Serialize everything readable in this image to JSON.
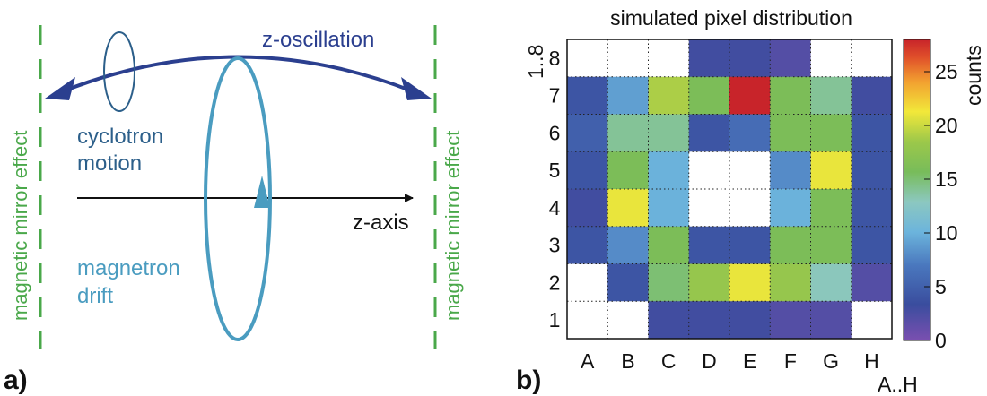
{
  "panel_a": {
    "label": "a)",
    "left_mirror_label": "magnetic mirror effect",
    "right_mirror_label": "magnetic mirror effect",
    "z_oscillation_label": "z-oscillation",
    "cyclotron_line1": "cyclotron",
    "cyclotron_line2": "motion",
    "magnetron_line1": "magnetron",
    "magnetron_line2": "drift",
    "z_axis_label": "z-axis",
    "colors": {
      "mirror": "#4aa84a",
      "cyclotron": "#2c5f8a",
      "magnetron": "#4a9cc0",
      "z_oscillation": "#2b3f8f",
      "axis": "#111111"
    }
  },
  "panel_b": {
    "label": "b)",
    "title": "simulated pixel distribution",
    "y_axis_label": "1..8",
    "x_axis_label": "A..H",
    "colorbar_label": "counts",
    "colorbar_ticks": [
      "0",
      "5",
      "10",
      "15",
      "20",
      "25"
    ]
  },
  "chart_data": {
    "type": "heatmap",
    "title": "simulated pixel distribution",
    "xlabel": "A..H",
    "ylabel": "1..8",
    "colorbar_label": "counts",
    "x_categories": [
      "A",
      "B",
      "C",
      "D",
      "E",
      "F",
      "G",
      "H"
    ],
    "y_categories": [
      "8",
      "7",
      "6",
      "5",
      "4",
      "3",
      "2",
      "1"
    ],
    "zlim": [
      0,
      28
    ],
    "colorbar_ticks": [
      0,
      5,
      10,
      15,
      20,
      25
    ],
    "values": [
      [
        null,
        null,
        null,
        3,
        3,
        2,
        null,
        null
      ],
      [
        4,
        9,
        19,
        16,
        28,
        16,
        14,
        3
      ],
      [
        5,
        14,
        14,
        4,
        6,
        16,
        16,
        4
      ],
      [
        4,
        16,
        10,
        null,
        null,
        8,
        21,
        4
      ],
      [
        3,
        21,
        10,
        null,
        null,
        10,
        16,
        4
      ],
      [
        4,
        8,
        16,
        4,
        4,
        16,
        16,
        4
      ],
      [
        null,
        4,
        15,
        18,
        21,
        18,
        13,
        2
      ],
      [
        null,
        null,
        3,
        3,
        3,
        2,
        2,
        null
      ]
    ]
  }
}
